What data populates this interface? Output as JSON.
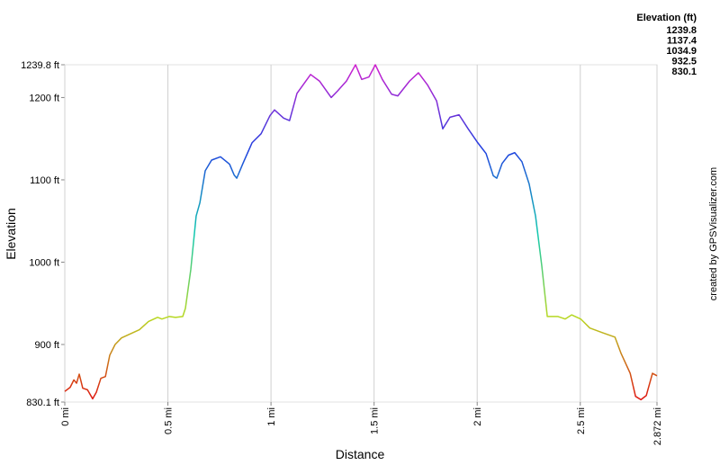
{
  "chart_data": {
    "type": "line",
    "x_label": "Distance",
    "y_label": "Elevation",
    "credit": "created by GPSVisualizer.com",
    "color_scale": {
      "title": "Elevation (ft)",
      "stops": [
        {
          "value": 1239.8,
          "color": "#d020d0"
        },
        {
          "value": 1137.4,
          "color": "#2040e0"
        },
        {
          "value": 1034.9,
          "color": "#10c8b0"
        },
        {
          "value": 932.5,
          "color": "#b8d820"
        },
        {
          "value": 830.1,
          "color": "#e01010"
        }
      ]
    },
    "x": [
      0,
      0.026,
      0.044,
      0.057,
      0.07,
      0.087,
      0.11,
      0.135,
      0.153,
      0.175,
      0.197,
      0.218,
      0.244,
      0.275,
      0.319,
      0.362,
      0.406,
      0.45,
      0.471,
      0.506,
      0.537,
      0.572,
      0.585,
      0.611,
      0.637,
      0.655,
      0.681,
      0.712,
      0.755,
      0.799,
      0.821,
      0.834,
      0.864,
      0.908,
      0.952,
      0.995,
      1.017,
      1.061,
      1.09,
      1.126,
      1.192,
      1.235,
      1.292,
      1.323,
      1.366,
      1.41,
      1.44,
      1.475,
      1.506,
      1.54,
      1.585,
      1.615,
      1.672,
      1.715,
      1.76,
      1.803,
      1.833,
      1.868,
      1.912,
      1.956,
      2.0,
      2.043,
      2.078,
      2.095,
      2.121,
      2.152,
      2.182,
      2.217,
      2.252,
      2.283,
      2.313,
      2.34,
      2.392,
      2.427,
      2.458,
      2.502,
      2.546,
      2.611,
      2.668,
      2.698,
      2.742,
      2.768,
      2.794,
      2.82,
      2.85,
      2.872
    ],
    "values": [
      843,
      848,
      857,
      853,
      864,
      847,
      845,
      834,
      842,
      859,
      861,
      887,
      900,
      908,
      913,
      918,
      928,
      933,
      931,
      934,
      933,
      934,
      944,
      991,
      1056,
      1072,
      1111,
      1124,
      1128,
      1119,
      1106,
      1102,
      1120,
      1145,
      1156,
      1178,
      1185,
      1175,
      1172,
      1205,
      1228,
      1220,
      1200,
      1208,
      1220,
      1239.8,
      1222,
      1225,
      1239.8,
      1222,
      1204,
      1202,
      1220,
      1230,
      1215,
      1196,
      1162,
      1176,
      1179,
      1162,
      1146,
      1132,
      1105,
      1102,
      1120,
      1130,
      1133,
      1122,
      1095,
      1056,
      996,
      934,
      934,
      931,
      936,
      931,
      920,
      914,
      909,
      889,
      865,
      837,
      833,
      838,
      865,
      862
    ],
    "xlim": [
      0,
      2.872
    ],
    "ylim": [
      830.1,
      1239.8
    ],
    "xticks": [
      {
        "value": 0,
        "label": "0 mi"
      },
      {
        "value": 0.5,
        "label": "0.5 mi"
      },
      {
        "value": 1,
        "label": "1 mi"
      },
      {
        "value": 1.5,
        "label": "1.5 mi"
      },
      {
        "value": 2,
        "label": "2 mi"
      },
      {
        "value": 2.5,
        "label": "2.5 mi"
      },
      {
        "value": 2.872,
        "label": "2.872 mi"
      }
    ],
    "yticks": [
      {
        "value": 830.1,
        "label": "830.1 ft"
      },
      {
        "value": 900,
        "label": "900 ft"
      },
      {
        "value": 1000,
        "label": "1000 ft"
      },
      {
        "value": 1100,
        "label": "1100 ft"
      },
      {
        "value": 1200,
        "label": "1200 ft"
      },
      {
        "value": 1239.8,
        "label": "1239.8 ft"
      }
    ],
    "grid": "x"
  }
}
